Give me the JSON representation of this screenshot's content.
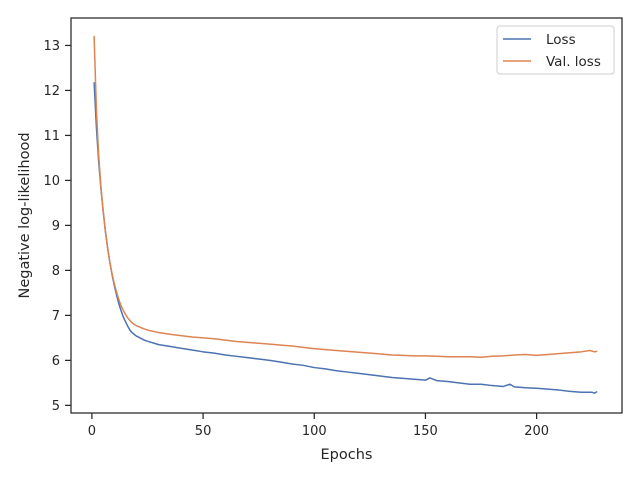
{
  "chart_data": {
    "type": "line",
    "xlabel": "Epochs",
    "ylabel": "Negative log-likelihood",
    "xlim": [
      -9.4,
      238.4
    ],
    "ylim": [
      4.83,
      13.61
    ],
    "xticks": [
      0,
      50,
      100,
      150,
      200
    ],
    "yticks": [
      5,
      6,
      7,
      8,
      9,
      10,
      11,
      12,
      13
    ],
    "grid": false,
    "legend_position": "top-right",
    "colors": {
      "loss": "#4c72b0",
      "val_loss": "#dd8452",
      "axes": "#262626"
    },
    "series": [
      {
        "name": "Loss",
        "color": "#4c72b0",
        "points": [
          [
            1,
            12.17
          ],
          [
            2,
            11.2
          ],
          [
            3,
            10.45
          ],
          [
            4,
            9.85
          ],
          [
            5,
            9.35
          ],
          [
            6,
            8.9
          ],
          [
            7,
            8.52
          ],
          [
            8,
            8.2
          ],
          [
            9,
            7.92
          ],
          [
            10,
            7.68
          ],
          [
            11,
            7.47
          ],
          [
            12,
            7.28
          ],
          [
            13,
            7.12
          ],
          [
            14,
            6.98
          ],
          [
            15,
            6.87
          ],
          [
            16,
            6.77
          ],
          [
            17,
            6.68
          ],
          [
            18,
            6.62
          ],
          [
            19,
            6.58
          ],
          [
            20,
            6.54
          ],
          [
            22,
            6.49
          ],
          [
            24,
            6.44
          ],
          [
            26,
            6.41
          ],
          [
            28,
            6.38
          ],
          [
            30,
            6.35
          ],
          [
            35,
            6.31
          ],
          [
            40,
            6.27
          ],
          [
            45,
            6.23
          ],
          [
            50,
            6.19
          ],
          [
            55,
            6.16
          ],
          [
            60,
            6.12
          ],
          [
            65,
            6.09
          ],
          [
            70,
            6.06
          ],
          [
            75,
            6.03
          ],
          [
            80,
            6.0
          ],
          [
            85,
            5.96
          ],
          [
            90,
            5.92
          ],
          [
            95,
            5.89
          ],
          [
            100,
            5.84
          ],
          [
            105,
            5.81
          ],
          [
            110,
            5.77
          ],
          [
            115,
            5.74
          ],
          [
            120,
            5.71
          ],
          [
            125,
            5.68
          ],
          [
            130,
            5.65
          ],
          [
            135,
            5.62
          ],
          [
            140,
            5.6
          ],
          [
            145,
            5.58
          ],
          [
            150,
            5.56
          ],
          [
            152,
            5.61
          ],
          [
            155,
            5.55
          ],
          [
            160,
            5.53
          ],
          [
            165,
            5.5
          ],
          [
            170,
            5.47
          ],
          [
            175,
            5.47
          ],
          [
            180,
            5.44
          ],
          [
            185,
            5.42
          ],
          [
            188,
            5.47
          ],
          [
            190,
            5.41
          ],
          [
            195,
            5.39
          ],
          [
            200,
            5.38
          ],
          [
            205,
            5.36
          ],
          [
            210,
            5.34
          ],
          [
            215,
            5.31
          ],
          [
            220,
            5.29
          ],
          [
            225,
            5.29
          ],
          [
            226,
            5.27
          ],
          [
            227,
            5.3
          ]
        ]
      },
      {
        "name": "Val. loss",
        "color": "#dd8452",
        "points": [
          [
            1,
            13.2
          ],
          [
            2,
            11.6
          ],
          [
            3,
            10.6
          ],
          [
            4,
            9.9
          ],
          [
            5,
            9.35
          ],
          [
            6,
            8.9
          ],
          [
            7,
            8.52
          ],
          [
            8,
            8.2
          ],
          [
            9,
            7.94
          ],
          [
            10,
            7.72
          ],
          [
            11,
            7.53
          ],
          [
            12,
            7.37
          ],
          [
            13,
            7.23
          ],
          [
            14,
            7.12
          ],
          [
            15,
            7.03
          ],
          [
            16,
            6.95
          ],
          [
            17,
            6.89
          ],
          [
            18,
            6.84
          ],
          [
            19,
            6.8
          ],
          [
            20,
            6.77
          ],
          [
            22,
            6.73
          ],
          [
            24,
            6.69
          ],
          [
            26,
            6.66
          ],
          [
            28,
            6.64
          ],
          [
            30,
            6.62
          ],
          [
            35,
            6.58
          ],
          [
            40,
            6.55
          ],
          [
            45,
            6.52
          ],
          [
            50,
            6.5
          ],
          [
            55,
            6.48
          ],
          [
            60,
            6.45
          ],
          [
            65,
            6.42
          ],
          [
            70,
            6.4
          ],
          [
            75,
            6.38
          ],
          [
            80,
            6.36
          ],
          [
            85,
            6.34
          ],
          [
            90,
            6.32
          ],
          [
            95,
            6.29
          ],
          [
            100,
            6.26
          ],
          [
            105,
            6.24
          ],
          [
            110,
            6.22
          ],
          [
            115,
            6.2
          ],
          [
            120,
            6.18
          ],
          [
            125,
            6.16
          ],
          [
            130,
            6.14
          ],
          [
            135,
            6.12
          ],
          [
            140,
            6.11
          ],
          [
            145,
            6.1
          ],
          [
            150,
            6.1
          ],
          [
            155,
            6.09
          ],
          [
            160,
            6.08
          ],
          [
            165,
            6.08
          ],
          [
            170,
            6.08
          ],
          [
            175,
            6.07
          ],
          [
            180,
            6.09
          ],
          [
            185,
            6.1
          ],
          [
            190,
            6.12
          ],
          [
            195,
            6.13
          ],
          [
            200,
            6.11
          ],
          [
            205,
            6.13
          ],
          [
            210,
            6.15
          ],
          [
            215,
            6.17
          ],
          [
            220,
            6.19
          ],
          [
            224,
            6.22
          ],
          [
            226,
            6.19
          ],
          [
            227,
            6.2
          ]
        ]
      }
    ]
  }
}
